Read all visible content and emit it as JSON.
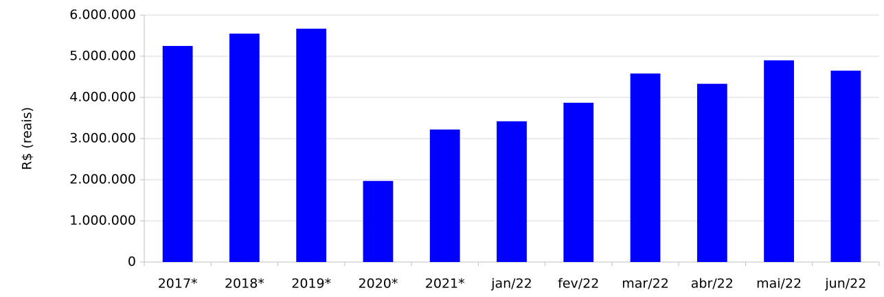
{
  "chart_data": {
    "type": "bar",
    "y_label": "R$ (reais)",
    "categories": [
      "2017*",
      "2018*",
      "2019*",
      "2020*",
      "2021*",
      "jan/22",
      "fev/22",
      "mar/22",
      "abr/22",
      "mai/22",
      "jun/22"
    ],
    "values": [
      5250000,
      5550000,
      5670000,
      1970000,
      3220000,
      3420000,
      3870000,
      4580000,
      4330000,
      4900000,
      4650000
    ],
    "color": "#0000ff",
    "ylim": [
      0,
      6000000
    ],
    "yticks": [
      0,
      {
        "value": 1000000,
        "label": "1.000.000"
      },
      {
        "value": 2000000,
        "label": "2.000.000"
      },
      {
        "value": 3000000,
        "label": "3.000.000"
      },
      {
        "value": 4000000,
        "label": "4.000.000"
      },
      {
        "value": 5000000,
        "label": "5.000.000"
      },
      {
        "value": 6000000,
        "label": "6.000.000"
      }
    ],
    "grid": true
  }
}
